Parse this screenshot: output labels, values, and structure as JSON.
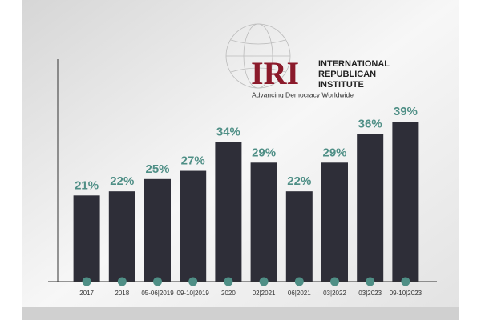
{
  "chart_data": {
    "type": "bar",
    "logo": {
      "mark": "IRI",
      "lines": [
        "INTERNATIONAL",
        "REPUBLICAN",
        "INSTITUTE"
      ],
      "tagline": "Advancing Democracy Worldwide"
    },
    "categories": [
      "2017",
      "2018",
      "05-06|2019",
      "09-10|2019",
      "2020",
      "02|2021",
      "06|2021",
      "03|2022",
      "03|2023",
      "09-10|2023"
    ],
    "values": [
      21,
      22,
      25,
      27,
      34,
      29,
      22,
      29,
      36,
      39
    ],
    "value_labels": [
      "21%",
      "22%",
      "25%",
      "27%",
      "34%",
      "29%",
      "22%",
      "29%",
      "36%",
      "39%"
    ],
    "color": "#2e2e38",
    "label_color": "#4f8f86"
  }
}
